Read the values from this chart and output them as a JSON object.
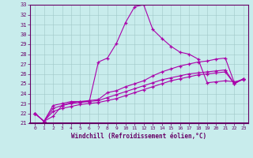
{
  "xlabel": "Windchill (Refroidissement éolien,°C)",
  "bg_color": "#c8ecec",
  "line_color": "#aa00aa",
  "xlim": [
    -0.5,
    23.5
  ],
  "ylim": [
    21,
    33
  ],
  "yticks": [
    21,
    22,
    23,
    24,
    25,
    26,
    27,
    28,
    29,
    30,
    31,
    32,
    33
  ],
  "xticks": [
    0,
    1,
    2,
    3,
    4,
    5,
    6,
    7,
    8,
    9,
    10,
    11,
    12,
    13,
    14,
    15,
    16,
    17,
    18,
    19,
    20,
    21,
    22,
    23
  ],
  "series": [
    {
      "x": [
        0,
        1,
        2,
        3,
        4,
        5,
        6,
        7,
        8,
        9,
        10,
        11,
        12,
        13,
        14,
        15,
        16,
        17,
        18,
        19,
        20,
        21,
        22,
        23
      ],
      "y": [
        22.0,
        21.2,
        21.7,
        22.8,
        23.1,
        23.2,
        23.2,
        27.2,
        27.6,
        29.1,
        31.2,
        32.8,
        33.0,
        30.5,
        29.6,
        28.8,
        28.2,
        28.0,
        27.5,
        25.1,
        25.2,
        25.3,
        25.2,
        25.4
      ]
    },
    {
      "x": [
        0,
        1,
        2,
        3,
        4,
        5,
        6,
        7,
        8,
        9,
        10,
        11,
        12,
        13,
        14,
        15,
        16,
        17,
        18,
        19,
        20,
        21,
        22,
        23
      ],
      "y": [
        22.0,
        21.2,
        22.8,
        23.0,
        23.2,
        23.2,
        23.3,
        23.4,
        24.1,
        24.3,
        24.7,
        25.0,
        25.3,
        25.8,
        26.2,
        26.5,
        26.8,
        27.0,
        27.2,
        27.3,
        27.5,
        27.6,
        25.1,
        25.5
      ]
    },
    {
      "x": [
        0,
        1,
        2,
        3,
        4,
        5,
        6,
        7,
        8,
        9,
        10,
        11,
        12,
        13,
        14,
        15,
        16,
        17,
        18,
        19,
        20,
        21,
        22,
        23
      ],
      "y": [
        22.0,
        21.2,
        22.5,
        22.8,
        23.0,
        23.1,
        23.2,
        23.3,
        23.6,
        23.9,
        24.2,
        24.5,
        24.8,
        25.1,
        25.4,
        25.6,
        25.8,
        26.0,
        26.1,
        26.2,
        26.3,
        26.4,
        25.0,
        25.5
      ]
    },
    {
      "x": [
        0,
        1,
        2,
        3,
        4,
        5,
        6,
        7,
        8,
        9,
        10,
        11,
        12,
        13,
        14,
        15,
        16,
        17,
        18,
        19,
        20,
        21,
        22,
        23
      ],
      "y": [
        22.0,
        21.2,
        22.2,
        22.5,
        22.7,
        22.9,
        23.0,
        23.1,
        23.3,
        23.5,
        23.8,
        24.1,
        24.4,
        24.7,
        25.0,
        25.3,
        25.5,
        25.7,
        25.9,
        26.0,
        26.1,
        26.2,
        25.0,
        25.5
      ]
    }
  ]
}
